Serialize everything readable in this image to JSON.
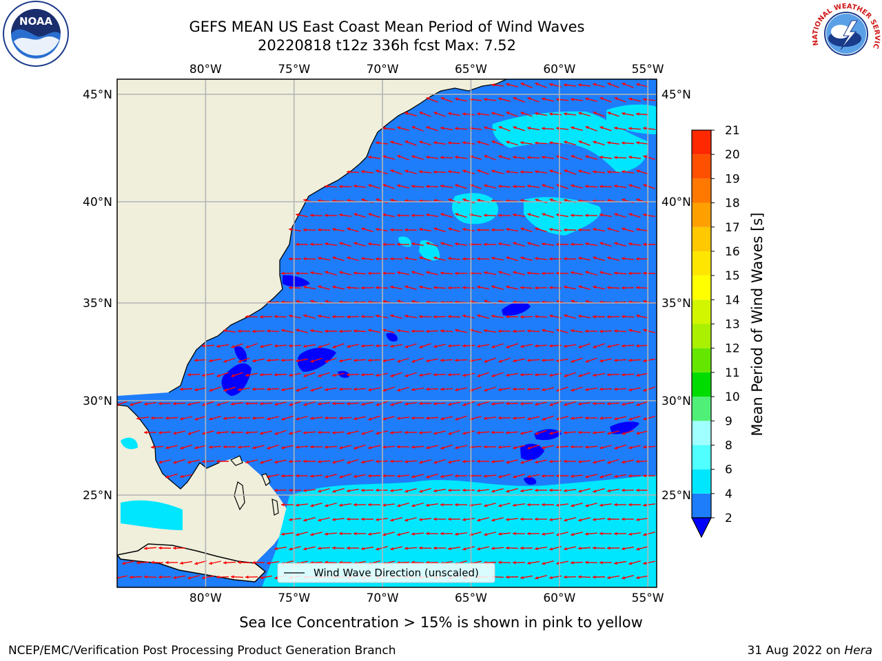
{
  "header": {
    "title_line1": "GEFS MEAN US East Coast Mean Period of Wind Waves",
    "title_line2": "20220818 t12z 336h fcst   Max: 7.52"
  },
  "logos": {
    "left": {
      "name": "noaa-logo",
      "text": "NOAA"
    },
    "right": {
      "name": "nws-logo",
      "text": "NATIONAL WEATHER SERVICE"
    }
  },
  "map": {
    "lon_labels_top": [
      "80°W",
      "75°W",
      "70°W",
      "65°W",
      "60°W",
      "55°W"
    ],
    "lon_labels_bottom": [
      "80°W",
      "75°W",
      "70°W",
      "65°W",
      "60°W",
      "55°W"
    ],
    "lat_labels_left": [
      "45°N",
      "40°N",
      "35°N",
      "30°N",
      "25°N"
    ],
    "lat_labels_right": [
      "45°N",
      "40°N",
      "35°N",
      "30°N",
      "25°N"
    ],
    "lon_range": [
      -85,
      -54.5
    ],
    "lat_range": [
      20.5,
      46.5
    ],
    "land_color": "#efefdc",
    "ocean_color": "#1e7dfa",
    "arrow_color": "#ff0000",
    "legend_label": "Wind Wave Direction (unscaled)"
  },
  "colorbar": {
    "label": "Mean Period of Wind Waves [s]",
    "tick_labels": [
      "2",
      "4",
      "6",
      "8",
      "9",
      "10",
      "11",
      "12",
      "13",
      "14",
      "15",
      "16",
      "17",
      "18",
      "19",
      "20",
      "21"
    ],
    "levels": [
      2,
      4,
      6,
      8,
      9,
      10,
      11,
      12,
      13,
      14,
      15,
      16,
      17,
      18,
      19,
      20,
      21
    ],
    "colors": [
      "#1e7dfa",
      "#00e6ff",
      "#50ffff",
      "#a0ffff",
      "#50f078",
      "#00dc00",
      "#64e600",
      "#aaf000",
      "#d2f500",
      "#ffff00",
      "#ffe600",
      "#ffc800",
      "#ffa000",
      "#ff7800",
      "#ff5000",
      "#ff2800",
      "#ff0000"
    ],
    "under_color": "#0000ff"
  },
  "footer": {
    "sea_ice_note": "Sea Ice Concentration > 15% is shown in pink to yellow",
    "credit": "NCEP/EMC/Verification Post Processing Product Generation Branch",
    "date": "31 Aug 2022 on ",
    "host": "Hera"
  }
}
